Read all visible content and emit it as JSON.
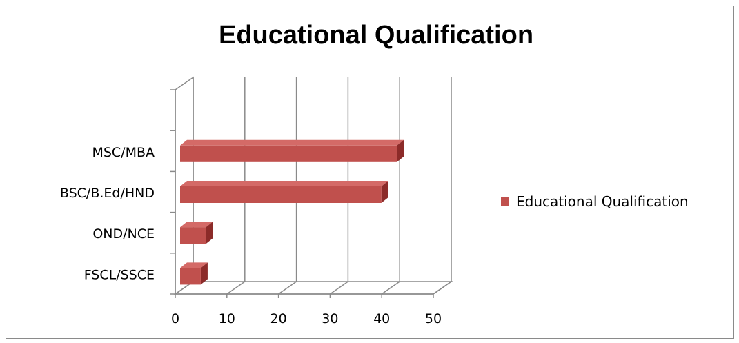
{
  "chart_data": {
    "type": "bar",
    "orientation": "horizontal",
    "title": "Educational Qualification",
    "categories": [
      "FSCL/SSCE",
      "OND/NCE",
      "BSC/B.Ed/HND",
      "MSC/MBA"
    ],
    "series": [
      {
        "name": "Educational Qualification",
        "values": [
          4,
          5,
          39,
          42
        ]
      }
    ],
    "xlim": [
      0,
      50
    ],
    "xticks": [
      "0",
      "10",
      "20",
      "30",
      "40",
      "50"
    ],
    "grid": true,
    "legend": "right",
    "three_d": true,
    "colors": {
      "bar_front": "#c0504d",
      "bar_top": "#d46a67",
      "bar_side": "#8c2b29",
      "grid": "#8a8a8a"
    }
  }
}
